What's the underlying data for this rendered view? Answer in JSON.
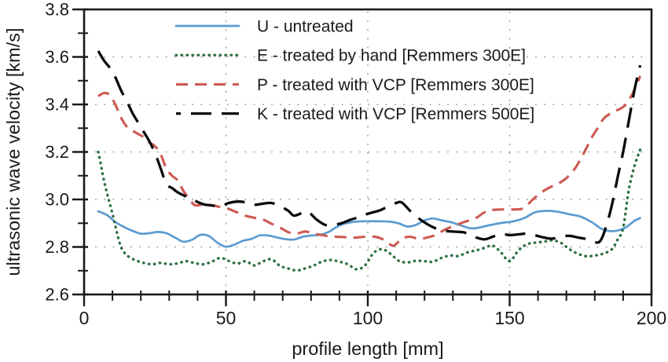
{
  "figure": {
    "background": "#ffffff",
    "text_color": "#1a1a1a",
    "axis_color": "#1a1a1a",
    "grid_color": "#8f8f8f"
  },
  "chart_data": {
    "type": "line",
    "title": "",
    "xlabel": "profile length [mm]",
    "ylabel": "ultrasonic wave velocity [km/s]",
    "xlim": [
      0,
      200
    ],
    "ylim": [
      2.6,
      3.8
    ],
    "x_major_ticks": [
      0,
      50,
      100,
      150,
      200
    ],
    "x_tick_labels": [
      "0",
      "50",
      "100",
      "150",
      "200"
    ],
    "x_minor_step": 10,
    "y_major_ticks": [
      2.6,
      2.8,
      3.0,
      3.2,
      3.4,
      3.6,
      3.8
    ],
    "y_tick_labels": [
      "2.6",
      "2.8",
      "3.0",
      "3.2",
      "3.4",
      "3.6",
      "3.8"
    ],
    "y_minor_step": 0.1,
    "grid": "dotted-at-major-ticks",
    "legend_position": "top-left-inside",
    "series": [
      {
        "name": "U - untreated",
        "color": "#5b9bd1",
        "style": "solid",
        "width": 2.7,
        "points": [
          [
            5,
            2.95
          ],
          [
            8,
            2.935
          ],
          [
            11,
            2.905
          ],
          [
            14,
            2.885
          ],
          [
            17,
            2.868
          ],
          [
            20,
            2.856
          ],
          [
            23,
            2.858
          ],
          [
            26,
            2.863
          ],
          [
            29,
            2.858
          ],
          [
            32,
            2.84
          ],
          [
            35,
            2.822
          ],
          [
            38,
            2.83
          ],
          [
            41,
            2.851
          ],
          [
            44,
            2.846
          ],
          [
            47,
            2.818
          ],
          [
            50,
            2.801
          ],
          [
            53,
            2.81
          ],
          [
            56,
            2.826
          ],
          [
            59,
            2.834
          ],
          [
            62,
            2.849
          ],
          [
            65,
            2.848
          ],
          [
            68,
            2.84
          ],
          [
            71,
            2.833
          ],
          [
            74,
            2.831
          ],
          [
            77,
            2.843
          ],
          [
            80,
            2.848
          ],
          [
            83,
            2.851
          ],
          [
            86,
            2.862
          ],
          [
            89,
            2.884
          ],
          [
            92,
            2.899
          ],
          [
            96,
            2.907
          ],
          [
            100,
            2.908
          ],
          [
            104,
            2.908
          ],
          [
            108,
            2.906
          ],
          [
            111,
            2.899
          ],
          [
            114,
            2.886
          ],
          [
            117,
            2.893
          ],
          [
            120,
            2.912
          ],
          [
            123,
            2.92
          ],
          [
            126,
            2.912
          ],
          [
            129,
            2.905
          ],
          [
            132,
            2.894
          ],
          [
            136,
            2.879
          ],
          [
            139,
            2.881
          ],
          [
            143,
            2.892
          ],
          [
            147,
            2.901
          ],
          [
            151,
            2.907
          ],
          [
            155,
            2.921
          ],
          [
            159,
            2.946
          ],
          [
            163,
            2.952
          ],
          [
            167,
            2.948
          ],
          [
            171,
            2.938
          ],
          [
            175,
            2.928
          ],
          [
            179,
            2.904
          ],
          [
            182,
            2.879
          ],
          [
            185,
            2.867
          ],
          [
            188,
            2.869
          ],
          [
            191,
            2.883
          ],
          [
            194,
            2.91
          ],
          [
            196,
            2.922
          ]
        ]
      },
      {
        "name": "E - treated by hand [Remmers 300E]",
        "color": "#2d7143",
        "style": "dotted",
        "width": 3.4,
        "points": [
          [
            5,
            3.2
          ],
          [
            6,
            3.14
          ],
          [
            7,
            3.08
          ],
          [
            8,
            3.03
          ],
          [
            9,
            2.985
          ],
          [
            10,
            2.94
          ],
          [
            11,
            2.89
          ],
          [
            12,
            2.84
          ],
          [
            13,
            2.8
          ],
          [
            14,
            2.78
          ],
          [
            15,
            2.765
          ],
          [
            17,
            2.75
          ],
          [
            19,
            2.74
          ],
          [
            21,
            2.733
          ],
          [
            24,
            2.727
          ],
          [
            27,
            2.733
          ],
          [
            30,
            2.727
          ],
          [
            33,
            2.731
          ],
          [
            36,
            2.74
          ],
          [
            39,
            2.732
          ],
          [
            42,
            2.727
          ],
          [
            45,
            2.738
          ],
          [
            48,
            2.754
          ],
          [
            51,
            2.741
          ],
          [
            54,
            2.73
          ],
          [
            57,
            2.74
          ],
          [
            60,
            2.722
          ],
          [
            63,
            2.739
          ],
          [
            66,
            2.748
          ],
          [
            69,
            2.721
          ],
          [
            72,
            2.709
          ],
          [
            75,
            2.701
          ],
          [
            78,
            2.71
          ],
          [
            81,
            2.722
          ],
          [
            84,
            2.739
          ],
          [
            87,
            2.745
          ],
          [
            90,
            2.738
          ],
          [
            93,
            2.727
          ],
          [
            96,
            2.706
          ],
          [
            99,
            2.722
          ],
          [
            102,
            2.774
          ],
          [
            105,
            2.791
          ],
          [
            108,
            2.771
          ],
          [
            111,
            2.741
          ],
          [
            114,
            2.735
          ],
          [
            117,
            2.742
          ],
          [
            120,
            2.74
          ],
          [
            123,
            2.738
          ],
          [
            126,
            2.754
          ],
          [
            129,
            2.764
          ],
          [
            132,
            2.762
          ],
          [
            135,
            2.777
          ],
          [
            138,
            2.785
          ],
          [
            141,
            2.795
          ],
          [
            144,
            2.806
          ],
          [
            147,
            2.776
          ],
          [
            150,
            2.74
          ],
          [
            153,
            2.784
          ],
          [
            156,
            2.811
          ],
          [
            159,
            2.818
          ],
          [
            162,
            2.822
          ],
          [
            165,
            2.828
          ],
          [
            168,
            2.818
          ],
          [
            171,
            2.791
          ],
          [
            174,
            2.772
          ],
          [
            177,
            2.761
          ],
          [
            180,
            2.764
          ],
          [
            183,
            2.772
          ],
          [
            186,
            2.79
          ],
          [
            188,
            2.83
          ],
          [
            190,
            2.88
          ],
          [
            192,
            3.04
          ],
          [
            194,
            3.14
          ],
          [
            196,
            3.21
          ]
        ]
      },
      {
        "name": "P - treated with VCP [Remmers 300E]",
        "color": "#cd5a52",
        "style": "dashed",
        "width": 3.1,
        "points": [
          [
            5,
            3.435
          ],
          [
            7,
            3.448
          ],
          [
            9,
            3.44
          ],
          [
            11,
            3.4
          ],
          [
            13,
            3.345
          ],
          [
            15,
            3.307
          ],
          [
            17,
            3.29
          ],
          [
            19,
            3.276
          ],
          [
            21,
            3.262
          ],
          [
            23,
            3.24
          ],
          [
            25,
            3.224
          ],
          [
            27,
            3.19
          ],
          [
            29,
            3.13
          ],
          [
            31,
            3.1
          ],
          [
            33,
            3.08
          ],
          [
            35,
            3.036
          ],
          [
            37,
            3.005
          ],
          [
            39,
            2.976
          ],
          [
            42,
            2.979
          ],
          [
            45,
            2.976
          ],
          [
            48,
            2.968
          ],
          [
            51,
            2.96
          ],
          [
            54,
            2.945
          ],
          [
            57,
            2.931
          ],
          [
            60,
            2.923
          ],
          [
            63,
            2.916
          ],
          [
            66,
            2.898
          ],
          [
            69,
            2.882
          ],
          [
            72,
            2.862
          ],
          [
            75,
            2.857
          ],
          [
            78,
            2.865
          ],
          [
            81,
            2.856
          ],
          [
            84,
            2.85
          ],
          [
            87,
            2.844
          ],
          [
            91,
            2.842
          ],
          [
            95,
            2.839
          ],
          [
            99,
            2.843
          ],
          [
            103,
            2.842
          ],
          [
            106,
            2.828
          ],
          [
            109,
            2.805
          ],
          [
            112,
            2.835
          ],
          [
            115,
            2.843
          ],
          [
            118,
            2.834
          ],
          [
            121,
            2.84
          ],
          [
            124,
            2.851
          ],
          [
            127,
            2.872
          ],
          [
            130,
            2.887
          ],
          [
            134,
            2.905
          ],
          [
            138,
            2.921
          ],
          [
            141,
            2.945
          ],
          [
            144,
            2.956
          ],
          [
            148,
            2.958
          ],
          [
            152,
            2.958
          ],
          [
            155,
            2.964
          ],
          [
            158,
            2.998
          ],
          [
            161,
            3.028
          ],
          [
            164,
            3.05
          ],
          [
            167,
            3.066
          ],
          [
            170,
            3.09
          ],
          [
            173,
            3.13
          ],
          [
            175,
            3.17
          ],
          [
            177,
            3.215
          ],
          [
            179,
            3.262
          ],
          [
            181,
            3.3
          ],
          [
            183,
            3.338
          ],
          [
            185,
            3.358
          ],
          [
            187,
            3.372
          ],
          [
            189,
            3.382
          ],
          [
            191,
            3.4
          ],
          [
            193,
            3.438
          ],
          [
            195,
            3.49
          ],
          [
            196,
            3.52
          ]
        ]
      },
      {
        "name": "K - treated with VCP [Remmers 500E]",
        "color": "#0a0a0a",
        "style": "longdash",
        "width": 3.3,
        "points": [
          [
            5,
            3.625
          ],
          [
            7,
            3.585
          ],
          [
            9,
            3.555
          ],
          [
            11,
            3.515
          ],
          [
            13,
            3.46
          ],
          [
            15,
            3.415
          ],
          [
            17,
            3.365
          ],
          [
            19,
            3.325
          ],
          [
            21,
            3.285
          ],
          [
            23,
            3.245
          ],
          [
            25,
            3.195
          ],
          [
            27,
            3.13
          ],
          [
            29,
            3.065
          ],
          [
            31,
            3.048
          ],
          [
            33,
            3.03
          ],
          [
            36,
            3.012
          ],
          [
            39,
            2.995
          ],
          [
            42,
            2.98
          ],
          [
            45,
            2.975
          ],
          [
            48,
            2.971
          ],
          [
            51,
            2.985
          ],
          [
            54,
            2.991
          ],
          [
            57,
            2.988
          ],
          [
            60,
            2.978
          ],
          [
            63,
            2.982
          ],
          [
            66,
            2.985
          ],
          [
            69,
            2.972
          ],
          [
            72,
            2.952
          ],
          [
            74,
            2.932
          ],
          [
            77,
            2.944
          ],
          [
            79,
            2.948
          ],
          [
            82,
            2.915
          ],
          [
            85,
            2.893
          ],
          [
            88,
            2.893
          ],
          [
            91,
            2.901
          ],
          [
            94,
            2.915
          ],
          [
            97,
            2.926
          ],
          [
            100,
            2.94
          ],
          [
            104,
            2.953
          ],
          [
            107,
            2.97
          ],
          [
            110,
            2.985
          ],
          [
            112,
            2.987
          ],
          [
            115,
            2.951
          ],
          [
            118,
            2.92
          ],
          [
            121,
            2.896
          ],
          [
            124,
            2.878
          ],
          [
            127,
            2.868
          ],
          [
            131,
            2.864
          ],
          [
            134,
            2.861
          ],
          [
            137,
            2.845
          ],
          [
            141,
            2.832
          ],
          [
            144,
            2.843
          ],
          [
            147,
            2.855
          ],
          [
            150,
            2.85
          ],
          [
            153,
            2.853
          ],
          [
            156,
            2.856
          ],
          [
            159,
            2.849
          ],
          [
            162,
            2.84
          ],
          [
            165,
            2.835
          ],
          [
            168,
            2.843
          ],
          [
            171,
            2.847
          ],
          [
            174,
            2.84
          ],
          [
            177,
            2.833
          ],
          [
            180,
            2.82
          ],
          [
            182,
            2.826
          ],
          [
            184,
            2.885
          ],
          [
            186,
            2.975
          ],
          [
            188,
            3.09
          ],
          [
            190,
            3.2
          ],
          [
            192,
            3.33
          ],
          [
            194,
            3.46
          ],
          [
            196,
            3.565
          ]
        ]
      }
    ]
  }
}
